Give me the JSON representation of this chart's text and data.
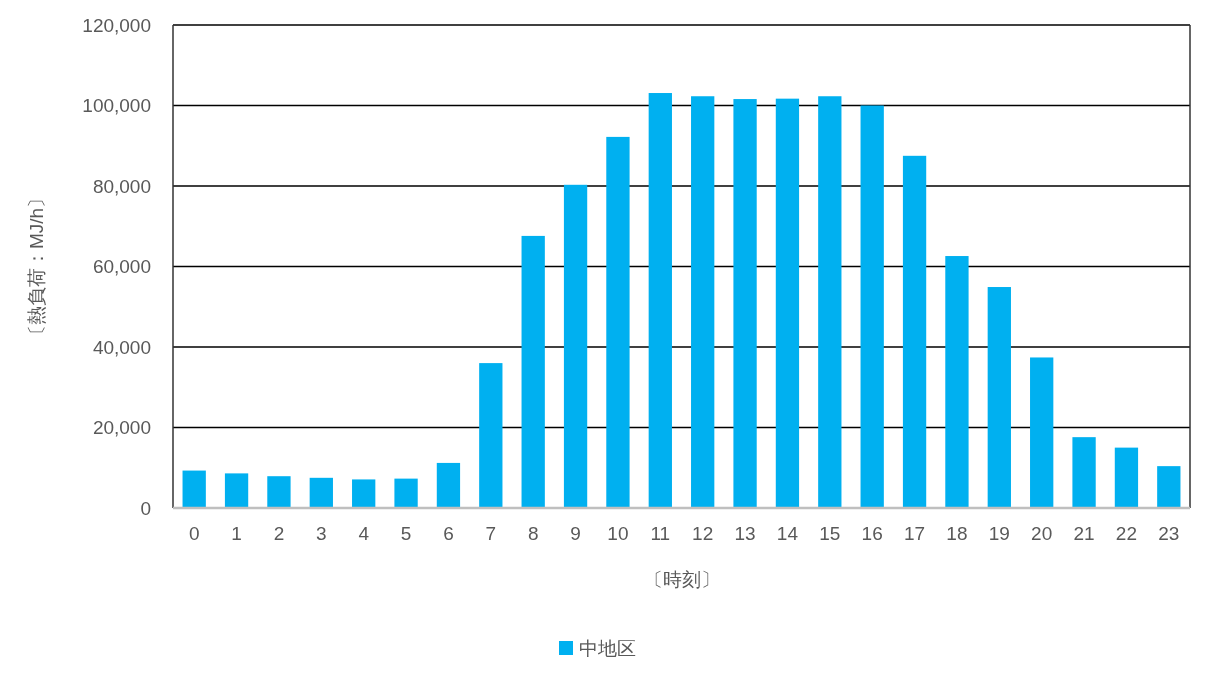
{
  "chart_data": {
    "type": "bar",
    "xlabel": "〔時刻〕",
    "ylabel": "〔熱負荷：MJ/h〕",
    "x": [
      0,
      1,
      2,
      3,
      4,
      5,
      6,
      7,
      8,
      9,
      10,
      11,
      12,
      13,
      14,
      15,
      16,
      17,
      18,
      19,
      20,
      21,
      22,
      23
    ],
    "xlim": [
      -0.5,
      23.5
    ],
    "xticks": [
      0,
      1,
      2,
      3,
      4,
      5,
      6,
      7,
      8,
      9,
      10,
      11,
      12,
      13,
      14,
      15,
      16,
      17,
      18,
      19,
      20,
      21,
      22,
      23
    ],
    "series": [
      {
        "name": "中地区",
        "color": "#00b0f0",
        "values": [
          9300,
          8600,
          7900,
          7500,
          7100,
          7300,
          11200,
          36000,
          67600,
          80300,
          92200,
          103100,
          102300,
          101600,
          101700,
          102300,
          100000,
          87500,
          62600,
          54900,
          37400,
          17600,
          15000,
          10400
        ]
      }
    ],
    "ylim": [
      0,
      120000
    ],
    "yticks": [
      {
        "value": 0,
        "label": "0"
      },
      {
        "value": 20000,
        "label": "20,000"
      },
      {
        "value": 40000,
        "label": "40,000"
      },
      {
        "value": 60000,
        "label": "60,000"
      },
      {
        "value": 80000,
        "label": "80,000"
      },
      {
        "value": 100000,
        "label": "100,000"
      },
      {
        "value": 120000,
        "label": "120,000"
      }
    ],
    "grid": "y",
    "legend": "bottom"
  }
}
